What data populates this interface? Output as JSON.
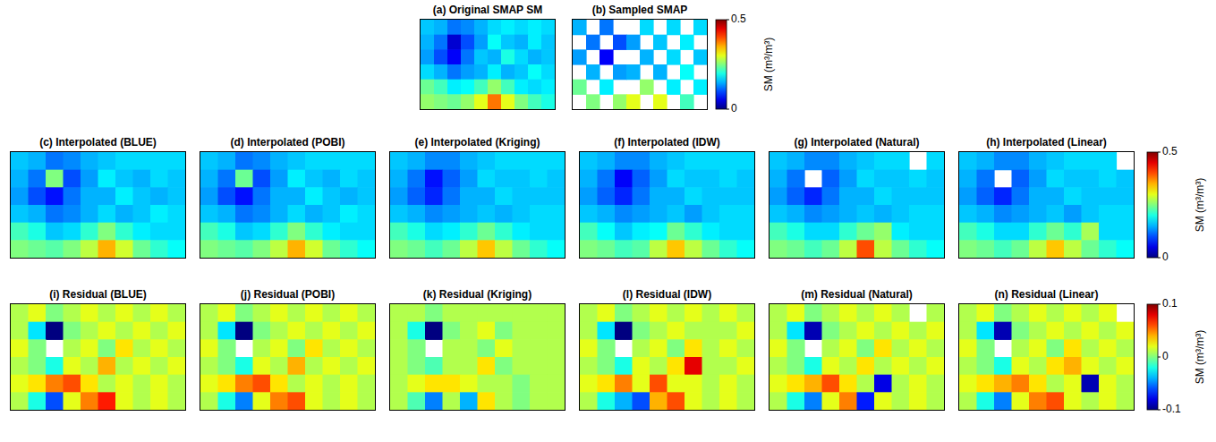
{
  "chart_data": [
    {
      "type": "heatmap",
      "title": "(a) Original SMAP SM",
      "color": "jet",
      "tick_labels": false,
      "crange": [
        0,
        0.5
      ],
      "cells": [
        [
          0.16,
          0.15,
          0.12,
          0.13,
          0.15,
          0.17,
          0.18,
          0.17,
          0.18,
          0.17
        ],
        [
          0.15,
          0.12,
          0.04,
          0.1,
          0.14,
          0.19,
          0.16,
          0.15,
          0.18,
          0.16
        ],
        [
          0.14,
          0.1,
          0.06,
          0.12,
          0.16,
          0.15,
          0.2,
          0.17,
          0.15,
          0.16
        ],
        [
          0.17,
          0.15,
          0.12,
          0.14,
          0.15,
          0.18,
          0.15,
          0.16,
          0.19,
          0.17
        ],
        [
          0.24,
          0.22,
          0.18,
          0.19,
          0.22,
          0.26,
          0.22,
          0.18,
          0.17,
          0.18
        ],
        [
          0.26,
          0.25,
          0.24,
          0.26,
          0.3,
          0.38,
          0.3,
          0.25,
          0.22,
          0.2
        ]
      ]
    },
    {
      "type": "heatmap",
      "title": "(b) Sampled SMAP",
      "color": "jet",
      "tick_labels": false,
      "crange": [
        0,
        0.5
      ],
      "colorbar": {
        "ticks": [
          0,
          0.5
        ],
        "label": "SM (m³/m³)"
      },
      "cells": [
        [
          0.15,
          null,
          0.12,
          null,
          null,
          0.17,
          null,
          0.17,
          null,
          0.17
        ],
        [
          null,
          0.12,
          null,
          0.1,
          0.14,
          null,
          0.16,
          null,
          0.18,
          null
        ],
        [
          0.14,
          null,
          0.06,
          null,
          null,
          0.15,
          null,
          0.17,
          null,
          0.16
        ],
        [
          null,
          0.15,
          null,
          0.14,
          0.15,
          null,
          0.15,
          null,
          0.19,
          null
        ],
        [
          0.24,
          null,
          0.18,
          null,
          null,
          0.26,
          null,
          0.18,
          null,
          0.18
        ],
        [
          null,
          0.25,
          null,
          0.26,
          0.3,
          null,
          0.3,
          null,
          0.22,
          null
        ]
      ]
    },
    {
      "type": "heatmap",
      "title": "(c) Interpolated (BLUE)",
      "color": "jet",
      "tick_labels": false,
      "crange": [
        0,
        0.5
      ],
      "cells": [
        [
          0.16,
          0.15,
          0.12,
          0.13,
          0.15,
          0.16,
          0.17,
          0.17,
          0.17,
          0.17
        ],
        [
          0.15,
          0.12,
          0.25,
          0.1,
          0.14,
          0.18,
          0.16,
          0.15,
          0.17,
          0.16
        ],
        [
          0.14,
          0.1,
          0.07,
          0.12,
          0.15,
          0.15,
          0.18,
          0.16,
          0.15,
          0.16
        ],
        [
          0.16,
          0.15,
          0.12,
          0.13,
          0.15,
          0.17,
          0.15,
          0.16,
          0.18,
          0.17
        ],
        [
          0.22,
          0.2,
          0.16,
          0.17,
          0.21,
          0.25,
          0.21,
          0.18,
          0.17,
          0.17
        ],
        [
          0.25,
          0.24,
          0.23,
          0.25,
          0.28,
          0.35,
          0.29,
          0.24,
          0.21,
          0.19
        ]
      ]
    },
    {
      "type": "heatmap",
      "title": "(d) Interpolated (POBI)",
      "color": "jet",
      "tick_labels": false,
      "crange": [
        0,
        0.5
      ],
      "cells": [
        [
          0.16,
          0.15,
          0.12,
          0.13,
          0.15,
          0.16,
          0.17,
          0.17,
          0.17,
          0.17
        ],
        [
          0.15,
          0.12,
          0.24,
          0.1,
          0.14,
          0.18,
          0.16,
          0.15,
          0.17,
          0.16
        ],
        [
          0.14,
          0.1,
          0.07,
          0.12,
          0.15,
          0.15,
          0.18,
          0.16,
          0.15,
          0.16
        ],
        [
          0.16,
          0.15,
          0.12,
          0.13,
          0.15,
          0.17,
          0.15,
          0.16,
          0.18,
          0.17
        ],
        [
          0.22,
          0.2,
          0.16,
          0.17,
          0.21,
          0.25,
          0.21,
          0.18,
          0.17,
          0.17
        ],
        [
          0.25,
          0.24,
          0.23,
          0.25,
          0.28,
          0.35,
          0.29,
          0.24,
          0.21,
          0.19
        ]
      ]
    },
    {
      "type": "heatmap",
      "title": "(e) Interpolated (Kriging)",
      "color": "jet",
      "tick_labels": false,
      "crange": [
        0,
        0.5
      ],
      "cells": [
        [
          0.16,
          0.15,
          0.13,
          0.13,
          0.15,
          0.16,
          0.17,
          0.17,
          0.17,
          0.17
        ],
        [
          0.15,
          0.12,
          0.07,
          0.11,
          0.14,
          0.17,
          0.16,
          0.16,
          0.17,
          0.16
        ],
        [
          0.14,
          0.11,
          0.08,
          0.12,
          0.15,
          0.15,
          0.17,
          0.16,
          0.16,
          0.16
        ],
        [
          0.16,
          0.15,
          0.13,
          0.14,
          0.15,
          0.16,
          0.15,
          0.16,
          0.17,
          0.17
        ],
        [
          0.22,
          0.2,
          0.17,
          0.18,
          0.21,
          0.24,
          0.21,
          0.18,
          0.17,
          0.17
        ],
        [
          0.25,
          0.24,
          0.22,
          0.24,
          0.28,
          0.34,
          0.28,
          0.24,
          0.21,
          0.19
        ]
      ]
    },
    {
      "type": "heatmap",
      "title": "(f) Interpolated (IDW)",
      "color": "jet",
      "tick_labels": false,
      "crange": [
        0,
        0.5
      ],
      "cells": [
        [
          0.16,
          0.15,
          0.13,
          0.13,
          0.15,
          0.16,
          0.17,
          0.17,
          0.17,
          0.17
        ],
        [
          0.15,
          0.12,
          0.06,
          0.11,
          0.14,
          0.17,
          0.16,
          0.16,
          0.17,
          0.16
        ],
        [
          0.14,
          0.11,
          0.08,
          0.12,
          0.15,
          0.15,
          0.17,
          0.16,
          0.16,
          0.16
        ],
        [
          0.16,
          0.15,
          0.13,
          0.14,
          0.15,
          0.16,
          0.14,
          0.16,
          0.17,
          0.17
        ],
        [
          0.22,
          0.19,
          0.16,
          0.18,
          0.19,
          0.24,
          0.21,
          0.18,
          0.17,
          0.17
        ],
        [
          0.25,
          0.24,
          0.22,
          0.23,
          0.28,
          0.34,
          0.28,
          0.24,
          0.21,
          0.19
        ]
      ]
    },
    {
      "type": "heatmap",
      "title": "(g) Interpolated (Natural)",
      "color": "jet",
      "tick_labels": false,
      "crange": [
        0,
        0.5
      ],
      "cells": [
        [
          0.16,
          0.15,
          0.13,
          0.13,
          0.15,
          0.16,
          0.17,
          0.17,
          null,
          0.17
        ],
        [
          0.15,
          0.12,
          null,
          0.11,
          0.14,
          0.17,
          0.16,
          0.16,
          0.17,
          0.16
        ],
        [
          0.14,
          0.11,
          0.08,
          0.12,
          0.15,
          0.15,
          0.17,
          0.16,
          0.16,
          0.16
        ],
        [
          0.16,
          0.15,
          0.13,
          0.14,
          0.15,
          0.16,
          0.15,
          0.16,
          0.17,
          0.17
        ],
        [
          0.22,
          0.2,
          0.17,
          0.17,
          0.21,
          0.24,
          0.26,
          0.18,
          0.17,
          0.17
        ],
        [
          0.25,
          0.24,
          0.22,
          0.24,
          0.28,
          0.4,
          0.28,
          0.24,
          0.21,
          0.19
        ]
      ]
    },
    {
      "type": "heatmap",
      "title": "(h) Interpolated (Linear)",
      "color": "jet",
      "tick_labels": false,
      "crange": [
        0,
        0.5
      ],
      "colorbar": {
        "ticks": [
          0,
          0.5
        ],
        "label": "SM (m³/m³)"
      },
      "cells": [
        [
          0.16,
          0.15,
          0.13,
          0.13,
          0.15,
          0.16,
          0.17,
          0.17,
          0.17,
          null
        ],
        [
          0.15,
          0.12,
          null,
          0.11,
          0.14,
          0.17,
          0.16,
          0.16,
          0.17,
          0.16
        ],
        [
          0.14,
          0.11,
          0.08,
          0.12,
          0.15,
          0.15,
          0.17,
          0.16,
          0.16,
          0.16
        ],
        [
          0.16,
          0.15,
          0.13,
          0.14,
          0.15,
          0.16,
          0.14,
          0.16,
          0.17,
          0.17
        ],
        [
          0.22,
          0.2,
          0.17,
          0.17,
          0.21,
          0.24,
          0.21,
          0.27,
          0.17,
          0.17
        ],
        [
          0.25,
          0.24,
          0.22,
          0.24,
          0.28,
          0.34,
          0.28,
          0.24,
          0.21,
          0.19
        ]
      ]
    },
    {
      "type": "heatmap",
      "title": "(i) Residual (BLUE)",
      "color": "jet",
      "tick_labels": false,
      "crange": [
        -0.1,
        0.1
      ],
      "cells": [
        [
          0.01,
          0.02,
          0.0,
          0.01,
          0.02,
          0.01,
          0.02,
          0.01,
          0.02,
          0.01
        ],
        [
          0.01,
          -0.03,
          -0.1,
          0.0,
          0.01,
          0.02,
          0.01,
          0.02,
          0.01,
          0.02
        ],
        [
          0.02,
          0.0,
          null,
          0.01,
          0.02,
          0.0,
          0.03,
          0.01,
          0.02,
          0.01
        ],
        [
          0.01,
          0.0,
          -0.02,
          0.02,
          0.01,
          0.04,
          0.01,
          0.02,
          0.01,
          0.02
        ],
        [
          0.02,
          0.03,
          0.05,
          0.06,
          0.03,
          0.01,
          0.02,
          0.01,
          0.02,
          0.01
        ],
        [
          0.01,
          -0.02,
          -0.06,
          0.02,
          0.05,
          0.07,
          0.02,
          0.01,
          0.02,
          0.01
        ]
      ]
    },
    {
      "type": "heatmap",
      "title": "(j) Residual (POBI)",
      "color": "jet",
      "tick_labels": false,
      "crange": [
        -0.1,
        0.1
      ],
      "cells": [
        [
          0.01,
          0.02,
          0.0,
          0.01,
          0.02,
          0.01,
          0.02,
          0.01,
          0.02,
          0.01
        ],
        [
          0.01,
          -0.03,
          -0.1,
          0.0,
          0.01,
          0.02,
          0.01,
          0.02,
          0.01,
          0.02
        ],
        [
          0.02,
          0.0,
          null,
          0.01,
          0.02,
          0.0,
          0.03,
          0.01,
          0.02,
          0.01
        ],
        [
          0.01,
          0.0,
          -0.02,
          0.02,
          0.01,
          0.04,
          0.01,
          0.02,
          0.01,
          0.02
        ],
        [
          0.02,
          0.03,
          0.05,
          0.06,
          0.03,
          0.01,
          0.02,
          0.01,
          0.02,
          0.01
        ],
        [
          0.01,
          -0.02,
          -0.05,
          0.02,
          0.05,
          0.06,
          0.02,
          0.01,
          0.02,
          0.01
        ]
      ]
    },
    {
      "type": "heatmap",
      "title": "(k) Residual (Kriging)",
      "color": "jet",
      "tick_labels": false,
      "crange": [
        -0.1,
        0.1
      ],
      "cells": [
        [
          0.01,
          0.01,
          0.0,
          0.01,
          0.01,
          0.01,
          0.01,
          0.01,
          0.01,
          0.01
        ],
        [
          0.01,
          -0.02,
          -0.1,
          0.0,
          0.01,
          0.02,
          0.0,
          0.01,
          0.01,
          0.01
        ],
        [
          0.01,
          0.0,
          null,
          0.01,
          0.01,
          0.0,
          0.02,
          0.01,
          0.01,
          0.01
        ],
        [
          0.01,
          0.0,
          -0.01,
          0.01,
          0.01,
          0.03,
          0.0,
          0.01,
          0.01,
          0.01
        ],
        [
          0.01,
          0.02,
          0.03,
          0.03,
          0.02,
          0.01,
          0.01,
          0.0,
          0.01,
          0.01
        ],
        [
          0.01,
          -0.01,
          -0.05,
          0.01,
          -0.04,
          0.03,
          0.01,
          0.0,
          0.01,
          0.01
        ]
      ]
    },
    {
      "type": "heatmap",
      "title": "(l) Residual (IDW)",
      "color": "jet",
      "tick_labels": false,
      "crange": [
        -0.1,
        0.1
      ],
      "cells": [
        [
          0.01,
          0.02,
          0.0,
          0.01,
          0.02,
          0.01,
          0.02,
          0.01,
          0.02,
          0.01
        ],
        [
          0.01,
          -0.03,
          -0.1,
          0.0,
          0.01,
          0.02,
          0.01,
          0.01,
          0.01,
          0.02
        ],
        [
          0.02,
          0.0,
          null,
          0.01,
          0.02,
          0.0,
          0.03,
          0.01,
          0.02,
          0.01
        ],
        [
          0.01,
          0.0,
          -0.02,
          0.02,
          0.01,
          0.03,
          0.08,
          0.01,
          0.01,
          0.02
        ],
        [
          0.02,
          0.03,
          0.05,
          0.02,
          0.06,
          0.02,
          0.02,
          0.01,
          0.02,
          0.01
        ],
        [
          0.01,
          -0.02,
          -0.04,
          -0.06,
          0.04,
          0.06,
          0.02,
          0.01,
          0.02,
          0.01
        ]
      ]
    },
    {
      "type": "heatmap",
      "title": "(m) Residual (Natural)",
      "color": "jet",
      "tick_labels": false,
      "crange": [
        -0.1,
        0.1
      ],
      "cells": [
        [
          0.01,
          0.02,
          0.0,
          0.01,
          0.02,
          0.01,
          0.02,
          0.01,
          null,
          0.01
        ],
        [
          0.01,
          -0.03,
          -0.09,
          0.0,
          0.01,
          0.02,
          0.01,
          0.02,
          0.01,
          0.02
        ],
        [
          0.02,
          0.0,
          null,
          0.01,
          0.02,
          0.0,
          0.03,
          0.01,
          0.02,
          0.01
        ],
        [
          0.01,
          0.0,
          -0.02,
          0.02,
          0.01,
          0.03,
          0.01,
          0.02,
          0.01,
          0.02
        ],
        [
          0.02,
          0.03,
          0.04,
          0.06,
          0.03,
          0.01,
          -0.08,
          0.01,
          0.02,
          0.01
        ],
        [
          0.01,
          -0.02,
          -0.05,
          0.02,
          0.05,
          -0.07,
          0.02,
          0.01,
          0.02,
          0.01
        ]
      ]
    },
    {
      "type": "heatmap",
      "title": "(n) Residual (Linear)",
      "color": "jet",
      "tick_labels": false,
      "crange": [
        -0.1,
        0.1
      ],
      "colorbar": {
        "ticks": [
          -0.1,
          0,
          0.1
        ],
        "label": "SM (m³/m³)"
      },
      "cells": [
        [
          0.01,
          0.02,
          0.0,
          0.01,
          0.02,
          0.01,
          0.02,
          0.01,
          0.02,
          null
        ],
        [
          0.01,
          -0.03,
          -0.09,
          0.0,
          0.01,
          0.02,
          0.01,
          0.02,
          0.01,
          0.02
        ],
        [
          0.02,
          0.0,
          null,
          0.01,
          0.02,
          0.0,
          0.03,
          0.01,
          0.02,
          0.01
        ],
        [
          0.01,
          0.0,
          -0.02,
          0.02,
          0.01,
          0.03,
          0.04,
          0.02,
          0.01,
          0.02
        ],
        [
          0.02,
          0.03,
          0.04,
          0.05,
          0.03,
          0.01,
          0.02,
          -0.09,
          0.02,
          0.01
        ],
        [
          0.01,
          -0.02,
          -0.05,
          0.02,
          0.05,
          0.06,
          0.02,
          0.01,
          0.02,
          0.01
        ]
      ]
    }
  ]
}
